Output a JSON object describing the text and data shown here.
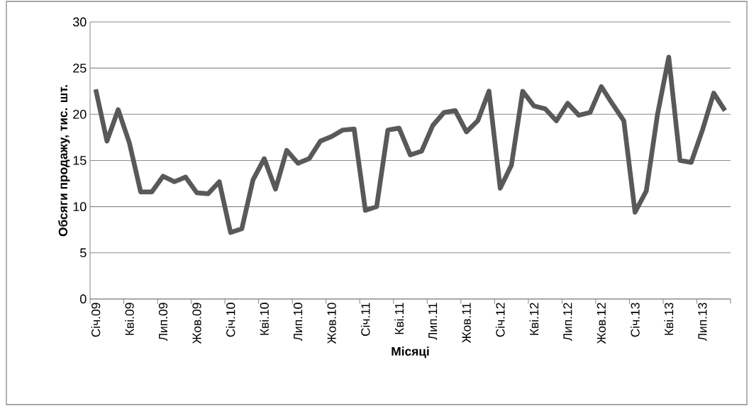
{
  "chart_data": {
    "type": "line",
    "xlabel": "Місяці",
    "ylabel": "Обсяги продажу, тис. шт.",
    "categories": [
      "Січ.09",
      null,
      null,
      "Кві.09",
      null,
      null,
      "Лип.09",
      null,
      null,
      "Жов.09",
      null,
      null,
      "Січ.10",
      null,
      null,
      "Кві.10",
      null,
      null,
      "Лип.10",
      null,
      null,
      "Жов.10",
      null,
      null,
      "Січ.11",
      null,
      null,
      "Кві.11",
      null,
      null,
      "Лип.11",
      null,
      null,
      "Жов.11",
      null,
      null,
      "Січ.12",
      null,
      null,
      "Кві.12",
      null,
      null,
      "Лип.12",
      null,
      null,
      "Жов.12",
      null,
      null,
      "Січ.13",
      null,
      null,
      "Кві.13",
      null,
      null,
      "Лип.13",
      null,
      null
    ],
    "series": [
      {
        "color": "#595959",
        "values": [
          22.7,
          17.1,
          20.5,
          16.9,
          11.6,
          11.6,
          13.3,
          12.7,
          13.2,
          11.5,
          11.4,
          12.7,
          7.2,
          7.6,
          12.9,
          15.2,
          11.9,
          16.1,
          14.7,
          15.2,
          17.1,
          17.6,
          18.3,
          18.4,
          9.6,
          10.0,
          18.3,
          18.5,
          15.6,
          16.0,
          18.8,
          20.2,
          20.4,
          18.1,
          19.3,
          22.5,
          12.0,
          14.5,
          22.5,
          20.9,
          20.6,
          19.3,
          21.2,
          19.9,
          20.2,
          23.0,
          21.1,
          19.3,
          9.4,
          11.7,
          20.0,
          26.2,
          15.0,
          14.8,
          18.3,
          22.3,
          20.4
        ]
      }
    ],
    "ylim": [
      0,
      30
    ],
    "yticks": [
      0,
      5,
      10,
      15,
      20,
      25,
      30
    ],
    "grid": "y",
    "marker": "none",
    "line_style": "solid"
  }
}
